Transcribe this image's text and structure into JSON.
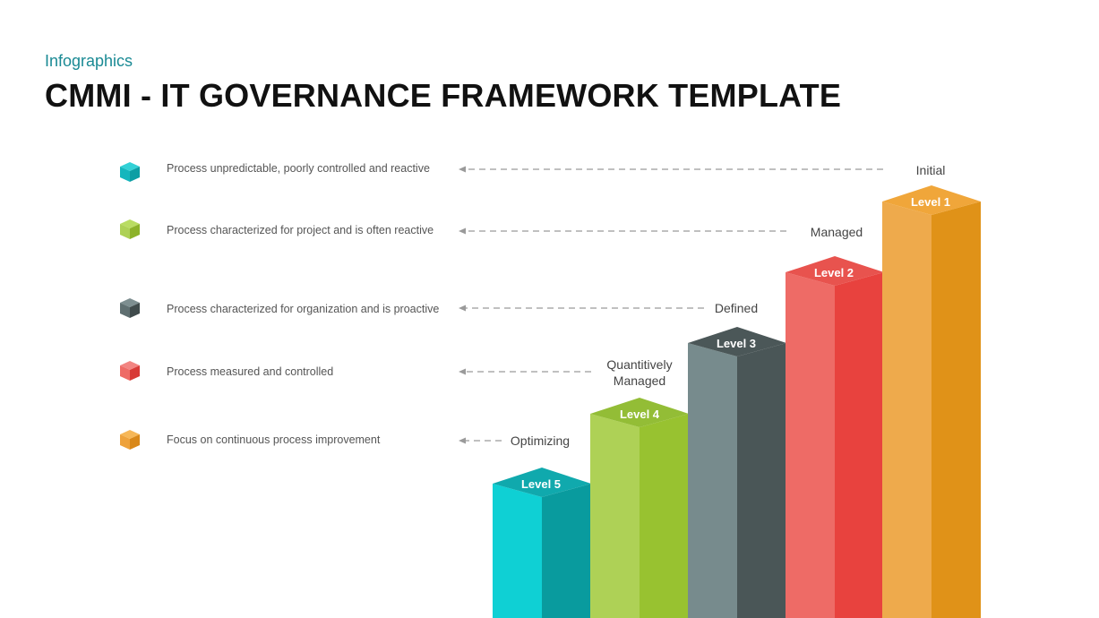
{
  "header": {
    "subtitle": "Infographics",
    "title": "CMMI - IT GOVERNANCE FRAMEWORK TEMPLATE"
  },
  "levels": [
    {
      "tag": "Level 1",
      "name": "Initial",
      "description": "Process unpredictable, poorly controlled and reactive",
      "colors": {
        "top": "#f0a63a",
        "front": "#eeaa4c",
        "side": "#e09218"
      }
    },
    {
      "tag": "Level 2",
      "name": "Managed",
      "description": "Process characterized for project and is often reactive",
      "colors": {
        "top": "#e8534e",
        "front": "#ee6b66",
        "side": "#e8423e"
      }
    },
    {
      "tag": "Level 3",
      "name": "Defined",
      "description": "Process characterized for organization and is proactive",
      "colors": {
        "top": "#4b5758",
        "front": "#778b8d",
        "side": "#4a5657"
      }
    },
    {
      "tag": "Level 4",
      "name": "Quantitively Managed",
      "description": "Process measured and controlled",
      "colors": {
        "top": "#93bd36",
        "front": "#aed156",
        "side": "#98c230"
      }
    },
    {
      "tag": "Level 5",
      "name": "Optimizing",
      "description": "Focus on continuous process improvement",
      "colors": {
        "top": "#10a9ad",
        "front": "#0fd0d4",
        "side": "#099b9e"
      }
    }
  ],
  "legend_cube_colors": [
    "#15b6bd",
    "#98c230",
    "#4a5657",
    "#e8423e",
    "#e8952a"
  ]
}
